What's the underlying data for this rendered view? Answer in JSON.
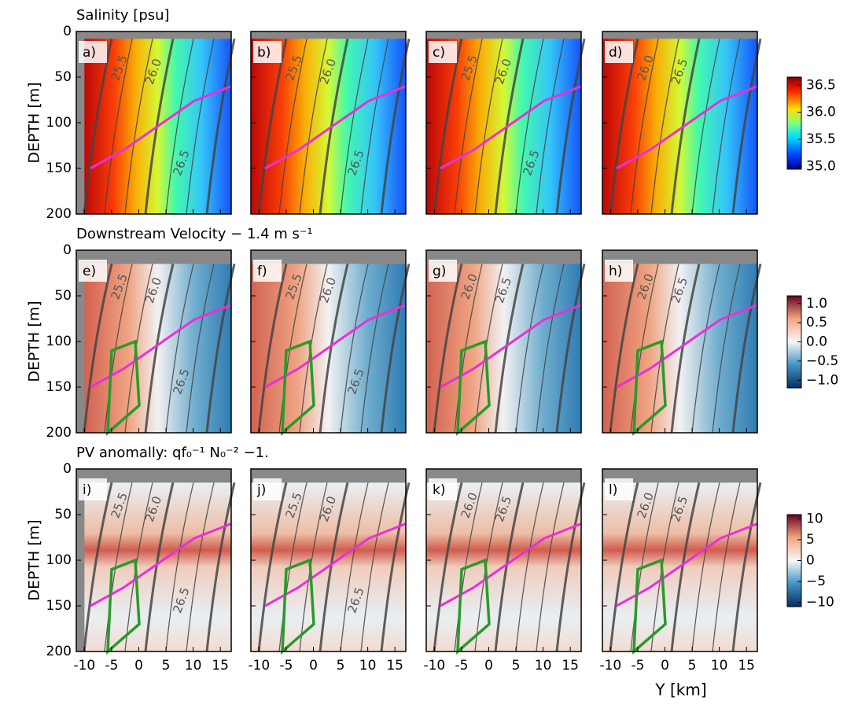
{
  "chart_data": {
    "type": "heatmap-grid",
    "xlabel": "Y [km]",
    "ylabel": "DEPTH [m]",
    "xlim": [
      -11.5,
      17
    ],
    "xticks": [
      -10,
      -5,
      0,
      5,
      10,
      15
    ],
    "ylim": [
      200,
      0
    ],
    "yticks": [
      0,
      50,
      100,
      150,
      200
    ],
    "rows": [
      {
        "title": "Salinity [psu]",
        "panels": [
          "a)",
          "b)",
          "c)",
          "d)"
        ],
        "contour_labels": [
          [
            "25.5",
            "26.0",
            "26.5"
          ],
          [
            "25.5",
            "26.0",
            "26.5"
          ],
          [
            "25.5",
            "26.0",
            "26.5"
          ],
          [
            "26.0",
            "26.5"
          ]
        ],
        "colormap": "jet",
        "colorbar": {
          "lim": [
            34.95,
            36.65
          ],
          "ticks": [
            {
              "value": 35,
              "label": "35.0"
            },
            35.5,
            {
              "value": 36,
              "label": "36.0"
            },
            36.5
          ]
        }
      },
      {
        "title": "Downstream Velocity − 1.4 m s⁻¹",
        "panels": [
          "e)",
          "f)",
          "g)",
          "h)"
        ],
        "contour_labels": [
          [
            "25.5",
            "26.0",
            "26.5"
          ],
          [
            "25.5",
            "26.0",
            "26.5"
          ],
          [
            "26.0",
            "26.5"
          ],
          [
            "26.0",
            "26.5"
          ]
        ],
        "colormap": "rdbu",
        "colorbar": {
          "lim": [
            -1.2,
            1.2
          ],
          "ticks": [
            {
              "value": -1,
              "label": "−1.0"
            },
            {
              "value": -0.5,
              "label": "−0.5"
            },
            {
              "value": 0,
              "label": "0.0"
            },
            0.5,
            {
              "value": 1,
              "label": "1.0"
            }
          ]
        }
      },
      {
        "title": "PV anomally: qf₀⁻¹ N₀⁻² −1.",
        "panels": [
          "i)",
          "j)",
          "k)",
          "l)"
        ],
        "contour_labels": [
          [
            "25.5",
            "26.0",
            "26.5"
          ],
          [
            "25.5",
            "26.0",
            "26.5"
          ],
          [
            "26.0",
            "26.5"
          ],
          [
            "26.0",
            "26.5"
          ]
        ],
        "colormap": "pv",
        "colorbar": {
          "lim": [
            -11,
            11
          ],
          "ticks": [
            {
              "value": -10,
              "label": "−10"
            },
            {
              "value": -5,
              "label": "−5"
            },
            0,
            5,
            10
          ]
        }
      }
    ]
  }
}
